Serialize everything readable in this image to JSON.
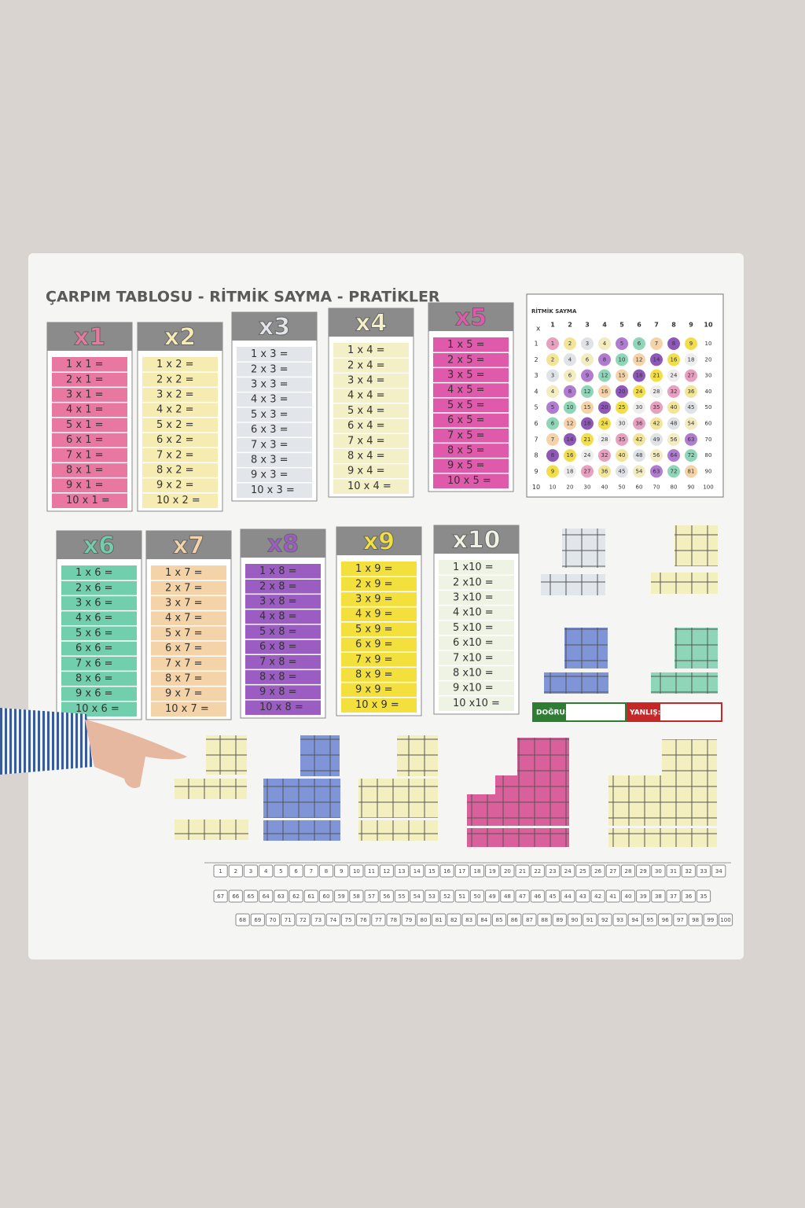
{
  "title": "ÇARPIM TABLOSU - RİTMİK SAYMA - PRATİKLER",
  "tables": [
    {
      "header": "x1",
      "color": "#e8789f",
      "rows": [
        "1 x 1 =",
        "2 x 1 =",
        "3 x 1 =",
        "4 x 1 =",
        "5 x 1 =",
        "6 x 1 =",
        "7 x 1 =",
        "8 x 1 =",
        "9 x 1 =",
        "10 x 1 ="
      ]
    },
    {
      "header": "x2",
      "color": "#f6ecb2",
      "rows": [
        "1 x 2 =",
        "2 x 2 =",
        "3 x 2 =",
        "4 x 2 =",
        "5 x 2 =",
        "6 x 2 =",
        "7 x 2 =",
        "8 x 2 =",
        "9 x 2 =",
        "10 x 2 ="
      ]
    },
    {
      "header": "x3",
      "color": "#e2e5ea",
      "rows": [
        "1 x 3 =",
        "2 x 3 =",
        "3 x 3 =",
        "4 x 3 =",
        "5 x 3 =",
        "6 x 3 =",
        "7 x 3 =",
        "8 x 3 =",
        "9 x 3 =",
        "10 x 3 ="
      ]
    },
    {
      "header": "x4",
      "color": "#f3efc6",
      "rows": [
        "1 x 4 =",
        "2 x 4 =",
        "3 x 4 =",
        "4 x 4 =",
        "5 x 4 =",
        "6 x 4 =",
        "7 x 4 =",
        "8 x 4 =",
        "9 x 4 =",
        "10 x 4 ="
      ]
    },
    {
      "header": "x5",
      "color": "#e05aab",
      "rows": [
        "1 x 5 =",
        "2 x 5 =",
        "3 x 5 =",
        "4 x 5 =",
        "5 x 5 =",
        "6 x 5 =",
        "7 x 5 =",
        "8 x 5 =",
        "9 x 5 =",
        "10 x 5 ="
      ]
    },
    {
      "header": "x6",
      "color": "#72cfae",
      "rows": [
        "1 x 6 =",
        "2 x 6 =",
        "3 x 6 =",
        "4 x 6 =",
        "5 x 6 =",
        "6 x 6 =",
        "7 x 6 =",
        "8 x 6 =",
        "9 x 6 =",
        "10 x 6 ="
      ]
    },
    {
      "header": "x7",
      "color": "#f5d3a8",
      "rows": [
        "1 x 7 =",
        "2 x 7 =",
        "3 x 7 =",
        "4 x 7 =",
        "5 x 7 =",
        "6 x 7 =",
        "7 x 7 =",
        "8 x 7 =",
        "9 x 7 =",
        "10 x 7 ="
      ]
    },
    {
      "header": "x8",
      "color": "#9b5dc2",
      "rows": [
        "1 x 8 =",
        "2 x 8 =",
        "3 x 8 =",
        "4 x 8 =",
        "5 x 8 =",
        "6 x 8 =",
        "7 x 8 =",
        "8 x 8 =",
        "9 x 8 =",
        "10 x 8 ="
      ]
    },
    {
      "header": "x9",
      "color": "#f4e03c",
      "rows": [
        "1 x 9 =",
        "2 x 9 =",
        "3 x 9 =",
        "4 x 9 =",
        "5 x 9 =",
        "6 x 9 =",
        "7 x 9 =",
        "8 x 9 =",
        "9 x 9 =",
        "10 x 9 ="
      ]
    },
    {
      "header": "x10",
      "color": "#eef3e4",
      "rows": [
        "1 x10 =",
        "2 x10 =",
        "3 x10 =",
        "4 x10 =",
        "5 x10 =",
        "6 x10 =",
        "7 x10 =",
        "8 x10 =",
        "9 x10 =",
        "10 x10 ="
      ]
    }
  ],
  "rhythm": {
    "title": "RİTMİK SAYMA",
    "corner": "x",
    "columns": [
      1,
      2,
      3,
      4,
      5,
      6,
      7,
      8,
      9,
      10
    ],
    "rows": [
      {
        "label": 1,
        "cells": [
          1,
          2,
          3,
          4,
          5,
          6,
          7,
          8,
          9,
          10
        ]
      },
      {
        "label": 2,
        "cells": [
          2,
          4,
          6,
          8,
          10,
          12,
          14,
          16,
          18,
          20
        ]
      },
      {
        "label": 3,
        "cells": [
          3,
          6,
          9,
          12,
          15,
          18,
          21,
          24,
          27,
          30
        ]
      },
      {
        "label": 4,
        "cells": [
          4,
          8,
          12,
          16,
          20,
          24,
          28,
          32,
          36,
          40
        ]
      },
      {
        "label": 5,
        "cells": [
          5,
          10,
          15,
          20,
          25,
          30,
          35,
          40,
          45,
          50
        ]
      },
      {
        "label": 6,
        "cells": [
          6,
          12,
          18,
          24,
          30,
          36,
          42,
          48,
          54,
          60
        ]
      },
      {
        "label": 7,
        "cells": [
          7,
          14,
          21,
          28,
          35,
          42,
          49,
          56,
          63,
          70
        ]
      },
      {
        "label": 8,
        "cells": [
          8,
          16,
          24,
          32,
          40,
          48,
          56,
          64,
          72,
          80
        ]
      },
      {
        "label": 9,
        "cells": [
          9,
          18,
          27,
          36,
          45,
          54,
          63,
          72,
          81,
          90
        ]
      },
      {
        "label": 10,
        "cells": [
          10,
          20,
          30,
          40,
          50,
          60,
          70,
          80,
          90,
          100
        ]
      }
    ]
  },
  "score": {
    "correct": "DOĞRU:",
    "wrong": "YANLIŞ:"
  },
  "trains": [
    [
      1,
      2,
      3,
      4,
      5,
      6,
      7,
      8,
      9,
      10,
      11,
      12,
      13,
      14,
      15,
      16,
      17,
      18,
      19,
      20,
      21,
      22,
      23,
      24,
      25,
      26,
      27,
      28,
      29,
      30,
      31,
      32,
      33,
      34
    ],
    [
      35,
      36,
      37,
      38,
      39,
      40,
      41,
      42,
      43,
      44,
      45,
      46,
      47,
      48,
      49,
      50,
      51,
      52,
      53,
      54,
      55,
      56,
      57,
      58,
      59,
      60,
      61,
      62,
      63,
      64,
      65,
      66,
      67
    ],
    [
      68,
      69,
      70,
      71,
      72,
      73,
      74,
      75,
      76,
      77,
      78,
      79,
      80,
      81,
      82,
      83,
      84,
      85,
      86,
      87,
      88,
      89,
      90,
      91,
      92,
      93,
      94,
      95,
      96,
      97,
      98,
      99,
      100
    ]
  ]
}
